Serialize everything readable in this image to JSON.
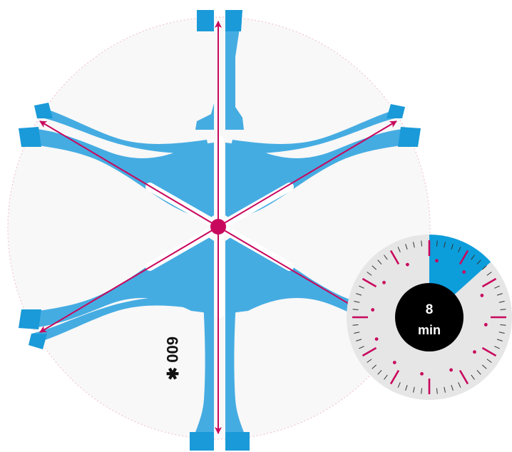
{
  "diagram": {
    "distance_label": "600 ✱",
    "colors": {
      "star_fill": "#45ace2",
      "star_tip": "#1a9ad8",
      "arrow": "#c8085d",
      "center_dot": "#c8085d",
      "circle_bg": "#f8f8f8",
      "circle_border": "#f2c6d5"
    }
  },
  "timer": {
    "value": "8",
    "unit": "min",
    "elapsed_minutes": 8,
    "total_minutes": 60,
    "colors": {
      "face": "#e6e6e6",
      "elapsed_wedge": "#0c9ddb",
      "center": "#000000",
      "major_tick": "#c8085d",
      "minor_tick": "#333333",
      "text": "#ffffff"
    }
  }
}
